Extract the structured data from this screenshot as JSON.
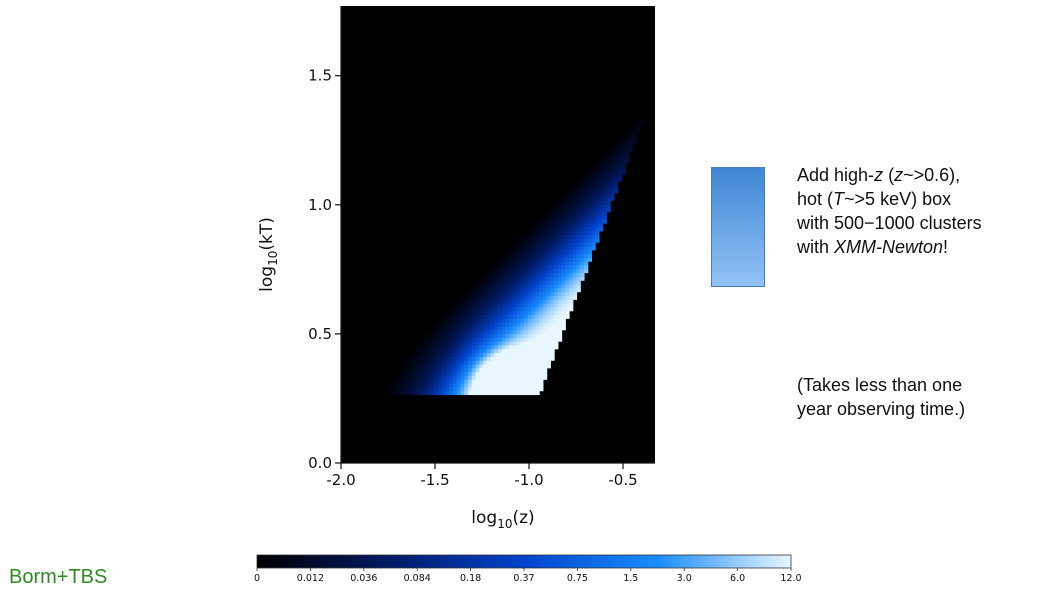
{
  "chart_data": {
    "type": "heatmap",
    "xlabel": "log10(z)",
    "ylabel": "log10(kT)",
    "xlim": [
      -2.0,
      -0.33
    ],
    "ylim": [
      0.0,
      1.77
    ],
    "xticks": [
      "-2.0",
      "-1.5",
      "-1.0",
      "-0.5"
    ],
    "xtick_values": [
      -2.0,
      -1.5,
      -1.0,
      -0.5
    ],
    "yticks": [
      "0.0",
      "0.5",
      "1.0",
      "1.5"
    ],
    "ytick_values": [
      0.0,
      0.5,
      1.0,
      1.5
    ],
    "colormap": [
      "#000000",
      "#001a66",
      "#0044cc",
      "#1a8cff",
      "#e8f6ff"
    ],
    "colorbar": {
      "ticks": [
        "0",
        "0.012",
        "0.036",
        "0.084",
        "0.18",
        "0.37",
        "0.75",
        "1.5",
        "3.0",
        "6.0",
        "12.0"
      ]
    },
    "region_note": "Non-zero density occupies a wedge from the detection threshold (log10 kT ≈ 0.26) up to the diagonal limit; brightest near log10 z ≈ -1.1, log10 kT ≈ 0.3"
  },
  "legend_swatch_color": "#5b9be0",
  "annotation": {
    "box_lines": [
      [
        "Add high-",
        "z",
        " (",
        "z",
        "~>0.6),"
      ],
      [
        "hot (",
        "T",
        "~>5 keV) box"
      ],
      [
        "with 500−1000 clusters"
      ],
      [
        "with ",
        "XMM-Newton",
        "!"
      ]
    ],
    "time_lines": [
      "(Takes less than one",
      "year observing time.)"
    ]
  },
  "credit": "Borm+TBS"
}
